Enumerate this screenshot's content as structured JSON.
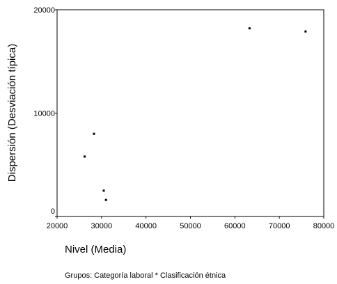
{
  "chart_data": {
    "type": "scatter",
    "title": "",
    "xlabel": "Nivel (Media)",
    "ylabel": "Dispersión (Desviación típica)",
    "footnote": "Grupos: Categoría laboral * Clasificación étnica",
    "xlim": [
      20000,
      80000
    ],
    "ylim": [
      0,
      20000
    ],
    "x_ticks": [
      20000,
      30000,
      40000,
      50000,
      60000,
      70000,
      80000
    ],
    "y_ticks": [
      0,
      10000,
      20000
    ],
    "x_tick_labels": [
      "20000",
      "30000",
      "40000",
      "50000",
      "60000",
      "70000",
      "80000"
    ],
    "y_tick_labels": [
      "0",
      "10000",
      "20000"
    ],
    "grid": false,
    "points": [
      {
        "x": 26200,
        "y": 5800
      },
      {
        "x": 28300,
        "y": 8000
      },
      {
        "x": 30500,
        "y": 2500
      },
      {
        "x": 31000,
        "y": 1600
      },
      {
        "x": 63300,
        "y": 18200
      },
      {
        "x": 75900,
        "y": 17900
      }
    ]
  }
}
